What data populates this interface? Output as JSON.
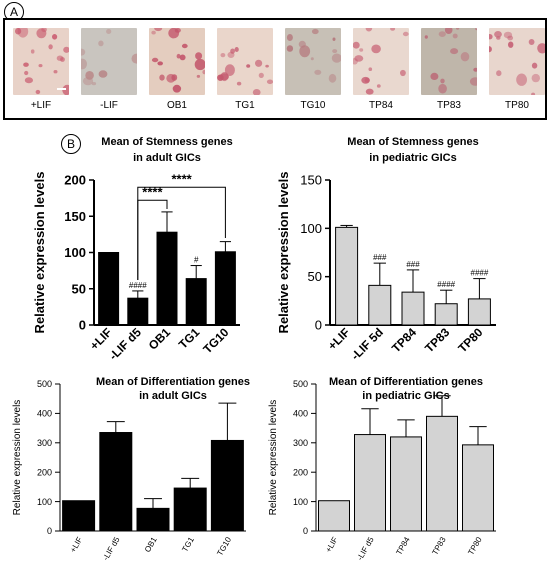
{
  "panel_a": {
    "label": "A",
    "images": [
      {
        "caption": "+LIF",
        "tone": "#e8d2c8",
        "spot": "#c95a6e",
        "density": 0.35
      },
      {
        "caption": "-LIF",
        "tone": "#c9c5bf",
        "spot": "#b98a8a",
        "density": 0.1
      },
      {
        "caption": "OB1",
        "tone": "#e4cdbf",
        "spot": "#c3556a",
        "density": 0.35
      },
      {
        "caption": "TG1",
        "tone": "#ead6cb",
        "spot": "#c4586d",
        "density": 0.3
      },
      {
        "caption": "TG10",
        "tone": "#c7c0b6",
        "spot": "#b57a7e",
        "density": 0.18
      },
      {
        "caption": "TP84",
        "tone": "#e9d8cf",
        "spot": "#c75e72",
        "density": 0.25
      },
      {
        "caption": "TP83",
        "tone": "#bfb6aa",
        "spot": "#bb6a78",
        "density": 0.22
      },
      {
        "caption": "TP80",
        "tone": "#e8d6cd",
        "spot": "#c66276",
        "density": 0.28
      }
    ]
  },
  "panel_b": {
    "label": "B"
  },
  "colors": {
    "black_bar": "#000000",
    "gray_bar": "#d3d3d3",
    "axis": "#000000"
  },
  "chart_data": [
    {
      "type": "bar",
      "title_lines": [
        "Mean of Stemness genes",
        "in adult GICs"
      ],
      "ylabel": "Relative expression levels",
      "categories": [
        "+LIF",
        "-LIF d5",
        "OB1",
        "TG1",
        "TG10"
      ],
      "values": [
        100,
        37,
        128,
        64,
        101
      ],
      "errors": [
        0,
        10,
        28,
        18,
        14
      ],
      "annotations": [
        "",
        "####",
        "",
        "#",
        ""
      ],
      "brackets": [
        {
          "from": 1,
          "to": 2,
          "label": "****"
        },
        {
          "from": 1,
          "to": 4,
          "label": "****"
        }
      ],
      "ylim": [
        0,
        200
      ],
      "yticks": [
        0,
        50,
        100,
        150,
        200
      ],
      "bar_color": "#000000"
    },
    {
      "type": "bar",
      "title_lines": [
        "Mean of Stemness genes",
        "in pediatric GICs"
      ],
      "ylabel": "Relative expression levels",
      "categories": [
        "+LIF",
        "-LIF 5d",
        "TP84",
        "TP83",
        "TP80"
      ],
      "values": [
        101,
        41,
        34,
        22,
        27
      ],
      "errors": [
        2,
        23,
        23,
        14,
        21
      ],
      "annotations": [
        "",
        "###",
        "###",
        "####",
        "####"
      ],
      "brackets": [],
      "ylim": [
        0,
        150
      ],
      "yticks": [
        0,
        50,
        100,
        150
      ],
      "bar_color": "#d3d3d3"
    },
    {
      "type": "bar",
      "title_lines": [
        "Mean of Differentiation genes",
        "in adult GICs"
      ],
      "ylabel": "Relative expression levels",
      "categories": [
        "+LIF",
        "-LIF d5",
        "OB1",
        "TG1",
        "TG10"
      ],
      "values": [
        103,
        335,
        77,
        146,
        308
      ],
      "errors": [
        0,
        37,
        33,
        33,
        127
      ],
      "annotations": [
        "",
        "",
        "",
        "",
        ""
      ],
      "brackets": [],
      "ylim": [
        0,
        500
      ],
      "yticks": [
        0,
        100,
        200,
        300,
        400,
        500
      ],
      "bar_color": "#000000"
    },
    {
      "type": "bar",
      "title_lines": [
        "Mean of Differentiation genes",
        "in pediatric GICs"
      ],
      "ylabel": "Relative expression levels",
      "categories": [
        "+LIF",
        "-LIF d5",
        "TP84",
        "TP83",
        "TP80"
      ],
      "values": [
        103,
        328,
        320,
        390,
        293
      ],
      "errors": [
        0,
        88,
        58,
        70,
        62
      ],
      "annotations": [
        "",
        "",
        "",
        "",
        ""
      ],
      "brackets": [],
      "ylim": [
        0,
        500
      ],
      "yticks": [
        0,
        100,
        200,
        300,
        400,
        500
      ],
      "bar_color": "#d3d3d3"
    }
  ]
}
